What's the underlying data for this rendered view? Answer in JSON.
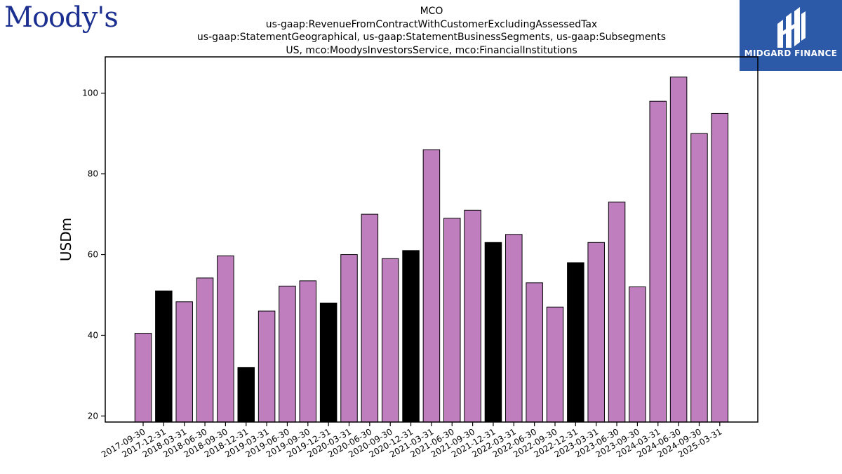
{
  "logos": {
    "left_text": "Moody's",
    "right_text": "MIDGARD FINANCE",
    "left_color": "#1a2f8f",
    "right_bg": "#2d59a9"
  },
  "chart_data": {
    "type": "bar",
    "title_lines": [
      "MCO",
      "us-gaap:RevenueFromContractWithCustomerExcludingAssessedTax",
      "us-gaap:StatementGeographical, us-gaap:StatementBusinessSegments, us-gaap:Subsegments",
      "US, mco:MoodysInvestorsService, mco:FinancialInstitutions"
    ],
    "ylabel": "USDm",
    "xlabel": "",
    "ylim": [
      18.5,
      109
    ],
    "yticks": [
      20,
      40,
      60,
      80,
      100
    ],
    "grid": false,
    "colors": {
      "regular": "#bf7fbf",
      "year_end": "#000000"
    },
    "categories": [
      "2017-09-30",
      "2017-12-31",
      "2018-03-31",
      "2018-06-30",
      "2018-09-30",
      "2018-12-31",
      "2019-03-31",
      "2019-06-30",
      "2019-09-30",
      "2019-12-31",
      "2020-03-31",
      "2020-06-30",
      "2020-09-30",
      "2020-12-31",
      "2021-03-31",
      "2021-06-30",
      "2021-09-30",
      "2021-12-31",
      "2022-03-31",
      "2022-06-30",
      "2022-09-30",
      "2022-12-31",
      "2023-03-31",
      "2023-06-30",
      "2023-09-30",
      "2024-03-31",
      "2024-06-30",
      "2024-09-30",
      "2025-03-31"
    ],
    "values": [
      40.5,
      51,
      48.3,
      54.2,
      59.7,
      32,
      46,
      52.2,
      53.5,
      48,
      60,
      70,
      59,
      61,
      86,
      69,
      71,
      63,
      65,
      53,
      47,
      58,
      63,
      73,
      52,
      98,
      104,
      90,
      95
    ],
    "year_end": [
      false,
      true,
      false,
      false,
      false,
      true,
      false,
      false,
      false,
      true,
      false,
      false,
      false,
      true,
      false,
      false,
      false,
      true,
      false,
      false,
      false,
      true,
      false,
      false,
      false,
      false,
      false,
      false,
      false
    ]
  }
}
